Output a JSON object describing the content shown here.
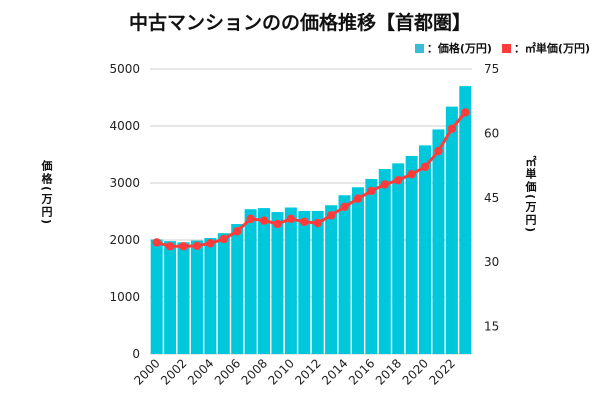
{
  "chart_data": {
    "type": "bar+line",
    "title": "中古マンションのの価格推移【首都圏】",
    "categories": [
      "2000",
      "2001",
      "2002",
      "2003",
      "2004",
      "2005",
      "2006",
      "2007",
      "2008",
      "2009",
      "2010",
      "2011",
      "2012",
      "2013",
      "2014",
      "2015",
      "2016",
      "2017",
      "2018",
      "2019",
      "2020",
      "2021",
      "2022",
      "2023"
    ],
    "x_tick_labels": [
      "2000",
      "2002",
      "2004",
      "2006",
      "2008",
      "2010",
      "2012",
      "2014",
      "2016",
      "2018",
      "2020",
      "2022"
    ],
    "series": [
      {
        "name": "：価格(万円)",
        "type": "bar",
        "axis": "left",
        "color": "#00c8dc",
        "values": [
          2010,
          1980,
          1960,
          1990,
          2035,
          2120,
          2280,
          2540,
          2560,
          2490,
          2570,
          2510,
          2510,
          2610,
          2785,
          2925,
          3070,
          3245,
          3345,
          3475,
          3660,
          3940,
          4340,
          4700
        ]
      },
      {
        "name": "：㎡単価(万円)",
        "type": "line",
        "axis": "right",
        "color": "#ff3b3b",
        "values": [
          34.6,
          33.7,
          33.7,
          33.8,
          34.4,
          35.4,
          37.2,
          40.1,
          39.7,
          38.9,
          40.1,
          39.4,
          39.1,
          40.9,
          42.9,
          44.8,
          46.6,
          48.1,
          49.1,
          50.5,
          52.2,
          55.9,
          61.1,
          64.9
        ]
      }
    ],
    "ylabel": "価格(万円)",
    "ylabel_right": "㎡単価(万円)",
    "ylim": [
      0,
      5000
    ],
    "yticks": [
      0,
      1000,
      2000,
      3000,
      4000,
      5000
    ],
    "ylim_right": [
      8.6,
      75
    ],
    "yticks_right": [
      15,
      30,
      45,
      60,
      75
    ],
    "grid": true,
    "legend": "top-right"
  }
}
